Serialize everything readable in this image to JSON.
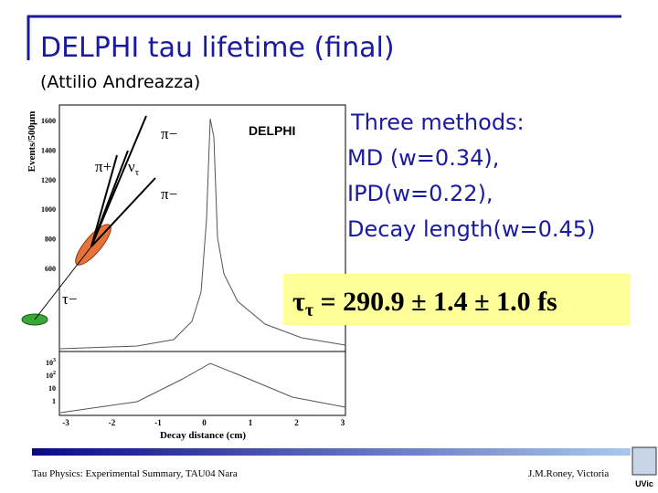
{
  "header": {
    "title": "DELPHI tau lifetime (final)",
    "subtitle": "(Attilio Andreazza)"
  },
  "figure": {
    "experiment": "DELPHI",
    "y_label": "Events/500μm",
    "x_label": "Decay distance (cm)",
    "upper_yticks": [
      "1600",
      "1400",
      "1200",
      "1000",
      "800",
      "600"
    ],
    "lower_yticks": [
      {
        "base": "10",
        "exp": "3"
      },
      {
        "base": "10",
        "exp": "2"
      },
      {
        "base": "10",
        "exp": ""
      },
      {
        "base": "1",
        "exp": ""
      }
    ],
    "xticks": [
      "-3",
      "-2",
      "-1",
      "0",
      "1",
      "2",
      "3"
    ],
    "particles": {
      "pi_minus_top": "π−",
      "pi_plus": "π+",
      "nu": "ν",
      "nu_sub": "τ",
      "pi_minus_low": "π−",
      "tau": "τ−"
    }
  },
  "methods": {
    "heading": "Three methods:",
    "items": [
      "MD (w=0.34),",
      "IPD(w=0.22),",
      "Decay length(w=0.45)"
    ]
  },
  "result": {
    "symbol": "τ",
    "subscript": "τ",
    "text": " = 290.9 ± 1.4 ± 1.0 fs"
  },
  "footer": {
    "left": "Tau Physics: Experimental Summary, TAU04 Nara",
    "right": "J.M.Roney, Victoria",
    "logo": "UVic"
  }
}
